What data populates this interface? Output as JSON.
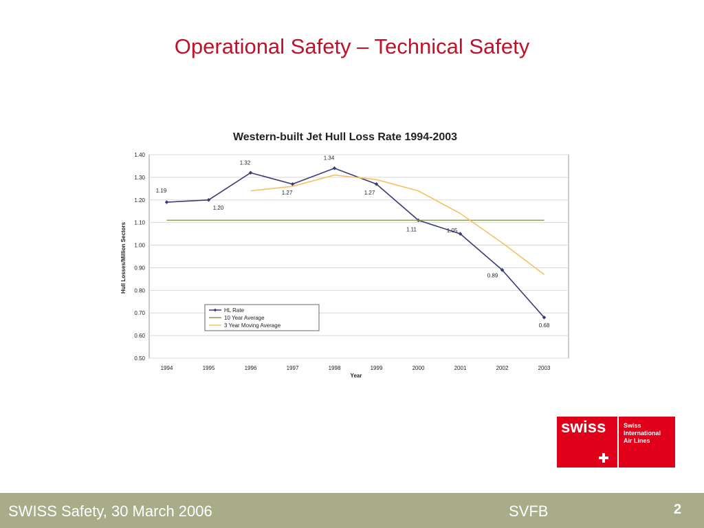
{
  "slide": {
    "title": "Operational Safety – Technical Safety"
  },
  "chart_data": {
    "type": "line",
    "title": "Western-built Jet Hull Loss Rate 1994-2003",
    "xlabel": "Year",
    "ylabel": "Hull Losses/Million Sectors",
    "categories": [
      "1994",
      "1995",
      "1996",
      "1997",
      "1998",
      "1999",
      "2000",
      "2001",
      "2002",
      "2003"
    ],
    "ylim": [
      0.5,
      1.4
    ],
    "yticks": [
      "0.50",
      "0.60",
      "0.70",
      "0.80",
      "0.90",
      "1.00",
      "1.10",
      "1.20",
      "1.30",
      "1.40"
    ],
    "grid": true,
    "legend_position": "lower-left",
    "series": [
      {
        "name": "HL Rate",
        "color": "#3b3b7a",
        "marker": "diamond",
        "values": [
          1.19,
          1.2,
          1.32,
          1.27,
          1.34,
          1.27,
          1.11,
          1.05,
          0.89,
          0.68
        ]
      },
      {
        "name": "10 Year Average",
        "color": "#8a9a5b",
        "values": [
          1.11,
          1.11,
          1.11,
          1.11,
          1.11,
          1.11,
          1.11,
          1.11,
          1.11,
          1.11
        ]
      },
      {
        "name": "3 Year Moving Average",
        "color": "#f5c060",
        "values": [
          null,
          null,
          1.24,
          1.26,
          1.31,
          1.29,
          1.24,
          1.14,
          1.01,
          0.87
        ]
      }
    ],
    "data_labels": [
      "1.19",
      "1.20",
      "1.32",
      "1.27",
      "1.34",
      "1.27",
      "1.11",
      "1.05",
      "0.89",
      "0.68"
    ]
  },
  "logo": {
    "wordmark": "swiss",
    "tagline": [
      "Swiss",
      "International",
      "Air Lines"
    ]
  },
  "footer": {
    "left": "SWISS Safety, 30 March 2006",
    "center": "SVFB",
    "page_number": "2"
  }
}
